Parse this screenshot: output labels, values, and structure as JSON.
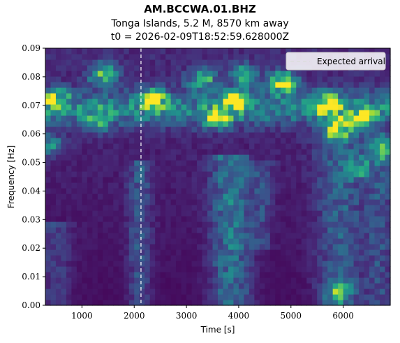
{
  "chart_data": {
    "type": "heatmap",
    "title": "AM.BCCWA.01.BHZ",
    "subtitle": "Tonga Islands, 5.2 M, 8570 km away",
    "subtitle2": "t0 = 2026-02-09T18:52:59.628000Z",
    "xlabel": "Time [s]",
    "ylabel": "Frequency [Hz]",
    "xlim": [
      300,
      6900
    ],
    "ylim": [
      0,
      0.09
    ],
    "xticks": [
      1000,
      2000,
      3000,
      4000,
      5000,
      6000
    ],
    "xtick_labels": [
      "1000",
      "2000",
      "3000",
      "4000",
      "5000",
      "6000"
    ],
    "yticks": [
      0,
      0.01,
      0.02,
      0.03,
      0.04,
      0.05,
      0.06,
      0.07,
      0.08,
      0.09
    ],
    "ytick_labels": [
      "0.00",
      "0.01",
      "0.02",
      "0.03",
      "0.04",
      "0.05",
      "0.06",
      "0.07",
      "0.08",
      "0.09"
    ],
    "colormap": "viridis",
    "expected_arrival": 2130,
    "legend": {
      "label": "Expected arrival",
      "placement": "top-right"
    },
    "hot_spots": [
      {
        "t": 4820,
        "f": 0.078,
        "v": 0.95
      },
      {
        "t": 5900,
        "f": 0.0625,
        "v": 1.0
      },
      {
        "t": 5700,
        "f": 0.0705,
        "v": 0.85
      },
      {
        "t": 3950,
        "f": 0.072,
        "v": 0.8
      },
      {
        "t": 2350,
        "f": 0.072,
        "v": 0.75
      },
      {
        "t": 3600,
        "f": 0.066,
        "v": 0.7
      },
      {
        "t": 1400,
        "f": 0.081,
        "v": 0.65
      },
      {
        "t": 3300,
        "f": 0.079,
        "v": 0.6
      },
      {
        "t": 4100,
        "f": 0.081,
        "v": 0.55
      },
      {
        "t": 6400,
        "f": 0.066,
        "v": 0.6
      },
      {
        "t": 1300,
        "f": 0.065,
        "v": 0.55
      },
      {
        "t": 500,
        "f": 0.072,
        "v": 0.6
      },
      {
        "t": 6750,
        "f": 0.054,
        "v": 0.5
      },
      {
        "t": 5900,
        "f": 0.0045,
        "v": 0.55
      },
      {
        "t": 400,
        "f": 0.056,
        "v": 0.45
      },
      {
        "t": 6300,
        "f": 0.048,
        "v": 0.4
      }
    ],
    "bands": [
      {
        "t": 3850,
        "width": 380,
        "f0": 0.0,
        "f1": 0.052,
        "v": 0.35
      },
      {
        "t": 2100,
        "width": 220,
        "f0": 0.0,
        "f1": 0.05,
        "v": 0.22
      },
      {
        "t": 5950,
        "width": 450,
        "f0": 0.0,
        "f1": 0.06,
        "v": 0.25
      },
      {
        "t": 4450,
        "width": 200,
        "f0": 0.02,
        "f1": 0.05,
        "v": 0.15
      },
      {
        "t": 6700,
        "width": 250,
        "f0": 0.0,
        "f1": 0.06,
        "v": 0.2
      },
      {
        "t": 500,
        "width": 300,
        "f0": 0.0,
        "f1": 0.03,
        "v": 0.15
      }
    ],
    "ridge": {
      "f": 0.069,
      "width": 0.006,
      "v": 0.35
    }
  }
}
